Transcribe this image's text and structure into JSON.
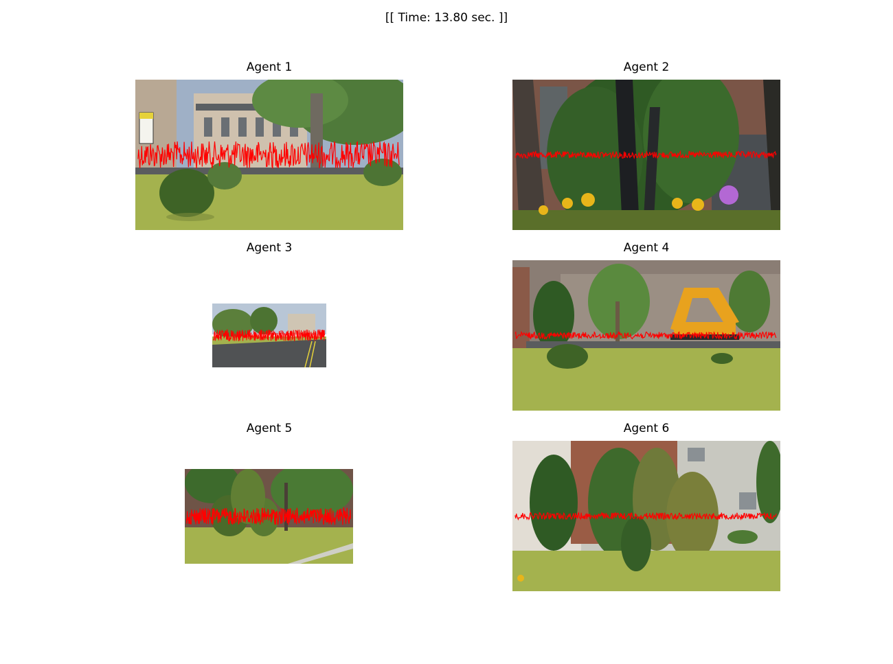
{
  "figure": {
    "title": "[[ Time: 13.80 sec. ]]"
  },
  "colors": {
    "signal": "#ff0000",
    "sky": "#8fa8c4",
    "grass": "#a4b24e",
    "road": "#4b4d4f",
    "building": "#cfc1ae",
    "brick": "#8a5a48",
    "tree": "#3f6a2a",
    "concrete": "#c8c8c0"
  },
  "panels": [
    {
      "title": "Agent 1",
      "scene": "city-street-trees"
    },
    {
      "title": "Agent 2",
      "scene": "trees-flowers"
    },
    {
      "title": "Agent 3",
      "scene": "road"
    },
    {
      "title": "Agent 4",
      "scene": "excavator-buildings"
    },
    {
      "title": "Agent 5",
      "scene": "bushes-path"
    },
    {
      "title": "Agent 6",
      "scene": "cypress-wall"
    }
  ],
  "chart_data": {
    "type": "line",
    "description_series": [
      {
        "agent": "Agent 1",
        "amplitude": 1.0
      },
      {
        "agent": "Agent 2",
        "amplitude": 0.25
      },
      {
        "agent": "Agent 3",
        "amplitude": 1.0
      },
      {
        "agent": "Agent 4",
        "amplitude": 0.25
      },
      {
        "agent": "Agent 5",
        "amplitude": 1.0
      },
      {
        "agent": "Agent 6",
        "amplitude": 0.25
      }
    ]
  }
}
